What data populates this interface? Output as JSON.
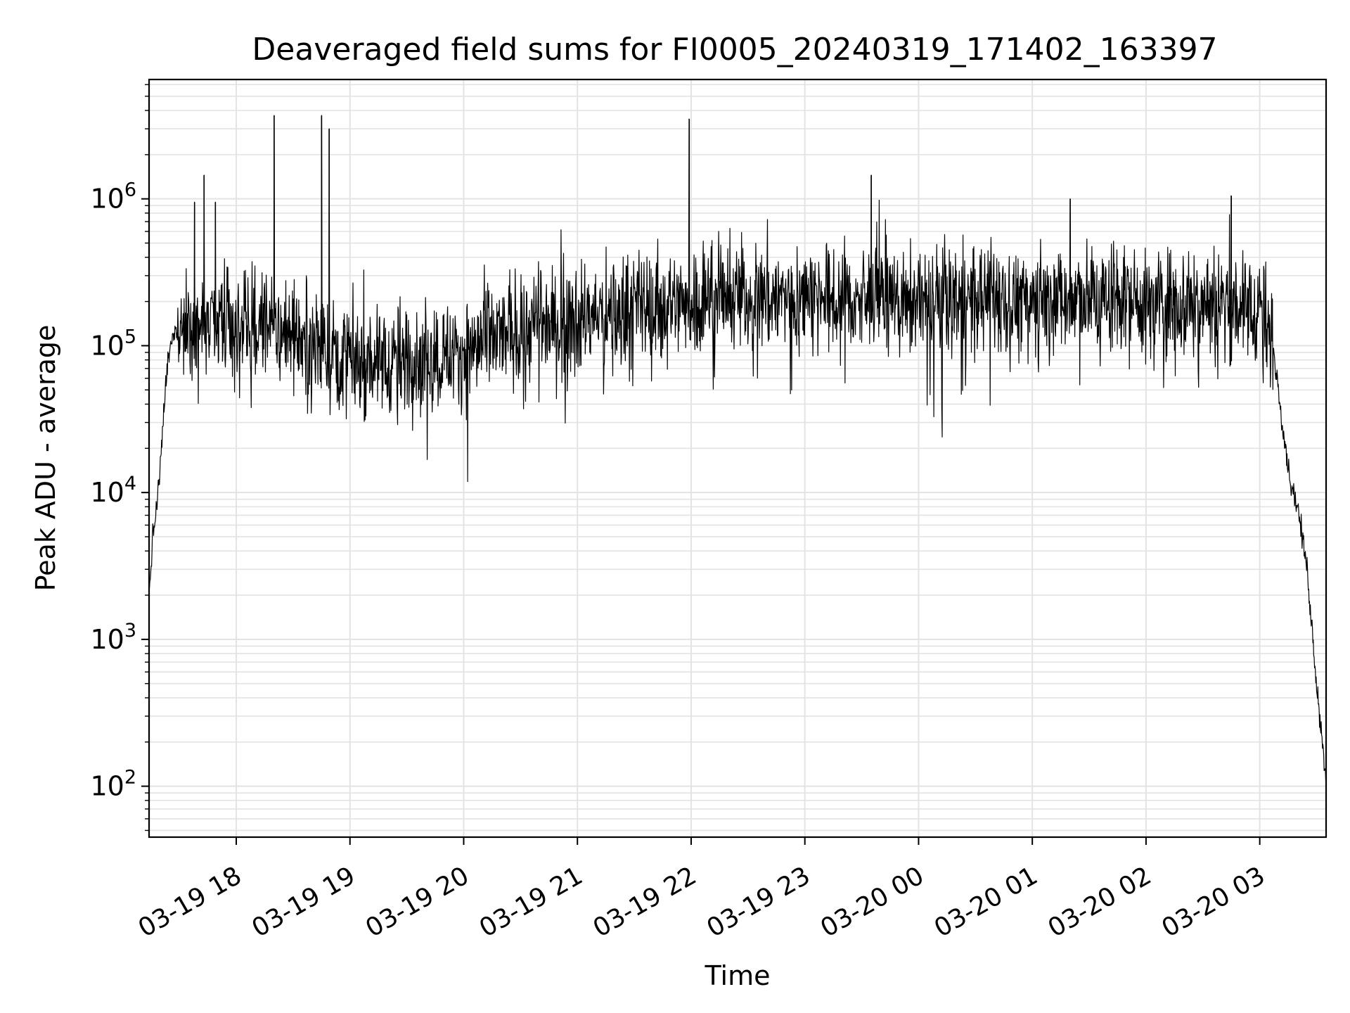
{
  "chart_data": {
    "type": "line",
    "title": "Deaveraged field sums for FI0005_20240319_171402_163397",
    "xlabel": "Time",
    "ylabel": "Peak ADU - average",
    "yscale": "log",
    "xlim": [
      "2024-03-19 17:14",
      "2024-03-20 03:35"
    ],
    "ylim": [
      45,
      6500000
    ],
    "grid": true,
    "line_color": "#000000",
    "x_ticks": [
      {
        "t": "2024-03-19 18:00",
        "label": "03-19 18"
      },
      {
        "t": "2024-03-19 19:00",
        "label": "03-19 19"
      },
      {
        "t": "2024-03-19 20:00",
        "label": "03-19 20"
      },
      {
        "t": "2024-03-19 21:00",
        "label": "03-19 21"
      },
      {
        "t": "2024-03-19 22:00",
        "label": "03-19 22"
      },
      {
        "t": "2024-03-19 23:00",
        "label": "03-19 23"
      },
      {
        "t": "2024-03-20 00:00",
        "label": "03-20 00"
      },
      {
        "t": "2024-03-20 01:00",
        "label": "03-20 01"
      },
      {
        "t": "2024-03-20 02:00",
        "label": "03-20 02"
      },
      {
        "t": "2024-03-20 03:00",
        "label": "03-20 03"
      }
    ],
    "y_ticks": [
      {
        "value": 100,
        "base": "10",
        "exp": "2"
      },
      {
        "value": 1000,
        "base": "10",
        "exp": "3"
      },
      {
        "value": 10000,
        "base": "10",
        "exp": "4"
      },
      {
        "value": 100000,
        "base": "10",
        "exp": "5"
      },
      {
        "value": 1000000,
        "base": "10",
        "exp": "6"
      }
    ],
    "series": [
      {
        "points": [
          [
            "2024-03-19 17:14",
            2000
          ],
          [
            "2024-03-19 17:16",
            5000
          ],
          [
            "2024-03-19 17:18",
            8000
          ],
          [
            "2024-03-19 17:20",
            15000
          ],
          [
            "2024-03-19 17:22",
            40000
          ],
          [
            "2024-03-19 17:24",
            80000
          ],
          [
            "2024-03-19 17:27",
            120000
          ],
          [
            "2024-03-19 17:30",
            140000
          ],
          [
            "2024-03-19 18:00",
            130000
          ],
          [
            "2024-03-19 18:30",
            125000
          ],
          [
            "2024-03-19 19:00",
            80000
          ],
          [
            "2024-03-19 19:30",
            80000
          ],
          [
            "2024-03-19 20:00",
            90000
          ],
          [
            "2024-03-19 20:30",
            130000
          ],
          [
            "2024-03-19 21:00",
            150000
          ],
          [
            "2024-03-19 21:30",
            180000
          ],
          [
            "2024-03-19 22:00",
            200000
          ],
          [
            "2024-03-19 22:30",
            220000
          ],
          [
            "2024-03-19 23:00",
            210000
          ],
          [
            "2024-03-19 23:30",
            200000
          ],
          [
            "2024-03-20 00:00",
            200000
          ],
          [
            "2024-03-20 00:30",
            210000
          ],
          [
            "2024-03-20 01:00",
            200000
          ],
          [
            "2024-03-20 01:30",
            210000
          ],
          [
            "2024-03-20 02:00",
            200000
          ],
          [
            "2024-03-20 02:30",
            200000
          ],
          [
            "2024-03-20 03:00",
            180000
          ],
          [
            "2024-03-20 03:07",
            100000
          ],
          [
            "2024-03-20 03:12",
            30000
          ],
          [
            "2024-03-20 03:16",
            12000
          ],
          [
            "2024-03-20 03:20",
            8000
          ],
          [
            "2024-03-20 03:25",
            3000
          ],
          [
            "2024-03-20 03:30",
            500
          ],
          [
            "2024-03-20 03:35",
            110
          ]
        ],
        "spikes": [
          [
            "2024-03-19 17:38",
            950000
          ],
          [
            "2024-03-19 17:43",
            1450000
          ],
          [
            "2024-03-19 17:49",
            950000
          ],
          [
            "2024-03-19 18:20",
            3700000
          ],
          [
            "2024-03-19 18:45",
            3700000
          ],
          [
            "2024-03-19 18:49",
            3000000
          ],
          [
            "2024-03-19 21:59",
            3500000
          ],
          [
            "2024-03-19 23:35",
            1450000
          ],
          [
            "2024-03-20 01:20",
            1000000
          ],
          [
            "2024-03-20 02:45",
            1050000
          ]
        ]
      }
    ]
  }
}
